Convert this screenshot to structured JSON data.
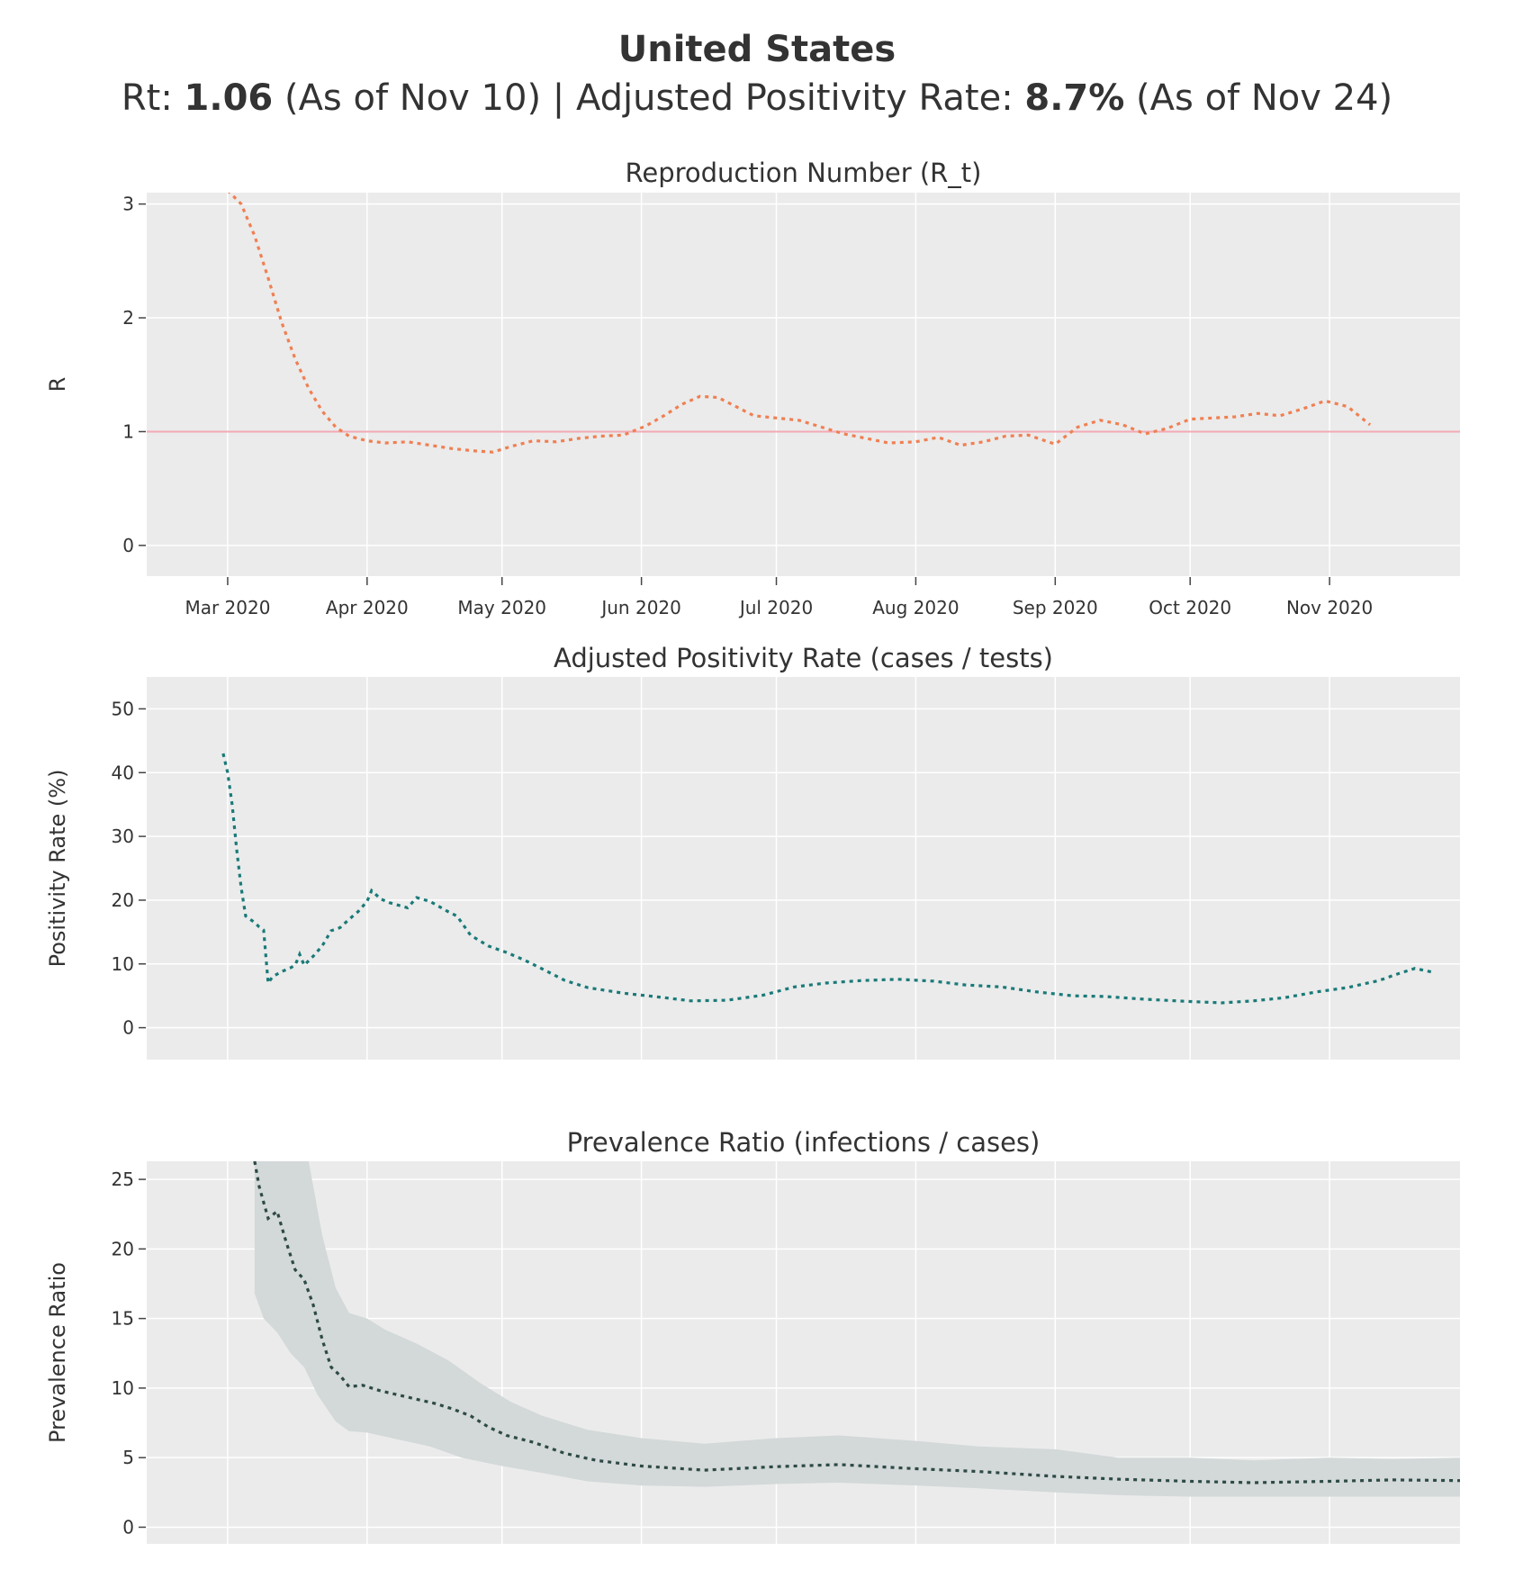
{
  "header": {
    "title": "United States",
    "rt_label": "Rt: ",
    "rt_value": "1.06",
    "rt_asof": " (As of Nov 10) | Adjusted Positivity Rate: ",
    "pos_value": "8.7%",
    "pos_asof": " (As of Nov 24)"
  },
  "colors": {
    "plot_bg": "#ebebeb",
    "grid": "#ffffff",
    "rt_line": "#f07f52",
    "rt_reference": "#f2a9b5",
    "positivity_line": "#1a7a78",
    "prevalence_line": "#2d4a44",
    "prevalence_band": "#d3d8d9"
  },
  "chart_data": [
    {
      "type": "line",
      "title": "Reproduction Number (R_t)",
      "xlabel": "",
      "ylabel": "R",
      "x_tick_labels": [
        "Mar 2020",
        "Apr 2020",
        "May 2020",
        "Jun 2020",
        "Jul 2020",
        "Aug 2020",
        "Sep 2020",
        "Oct 2020",
        "Nov 2020"
      ],
      "y_ticks": [
        0,
        1,
        2,
        3
      ],
      "ylim": [
        -0.27,
        3.1
      ],
      "xlim": [
        "2020-02-12",
        "2020-11-30"
      ],
      "reference_line": 1,
      "grid": true,
      "series": [
        {
          "x": [
            "2020-03-01",
            "2020-03-04",
            "2020-03-07",
            "2020-03-10",
            "2020-03-13",
            "2020-03-16",
            "2020-03-19",
            "2020-03-22",
            "2020-03-25",
            "2020-03-28",
            "2020-04-01",
            "2020-04-05",
            "2020-04-10",
            "2020-04-15",
            "2020-04-20",
            "2020-04-25",
            "2020-04-29",
            "2020-05-03",
            "2020-05-08",
            "2020-05-13",
            "2020-05-18",
            "2020-05-23",
            "2020-05-28",
            "2020-06-02",
            "2020-06-06",
            "2020-06-10",
            "2020-06-14",
            "2020-06-18",
            "2020-06-22",
            "2020-06-26",
            "2020-07-01",
            "2020-07-06",
            "2020-07-11",
            "2020-07-16",
            "2020-07-21",
            "2020-07-26",
            "2020-08-01",
            "2020-08-06",
            "2020-08-11",
            "2020-08-16",
            "2020-08-21",
            "2020-08-26",
            "2020-09-01",
            "2020-09-06",
            "2020-09-11",
            "2020-09-16",
            "2020-09-21",
            "2020-09-26",
            "2020-10-01",
            "2020-10-06",
            "2020-10-11",
            "2020-10-16",
            "2020-10-21",
            "2020-10-26",
            "2020-10-31",
            "2020-11-05",
            "2020-11-10"
          ],
          "y": [
            3.12,
            3.0,
            2.72,
            2.35,
            1.96,
            1.64,
            1.38,
            1.18,
            1.04,
            0.96,
            0.92,
            0.9,
            0.91,
            0.88,
            0.85,
            0.83,
            0.82,
            0.87,
            0.92,
            0.91,
            0.94,
            0.96,
            0.97,
            1.05,
            1.14,
            1.24,
            1.31,
            1.3,
            1.22,
            1.14,
            1.12,
            1.1,
            1.04,
            0.98,
            0.94,
            0.9,
            0.91,
            0.95,
            0.88,
            0.91,
            0.96,
            0.97,
            0.89,
            1.04,
            1.1,
            1.06,
            0.98,
            1.03,
            1.11,
            1.12,
            1.13,
            1.16,
            1.14,
            1.2,
            1.27,
            1.22,
            1.06
          ]
        }
      ]
    },
    {
      "type": "line",
      "title": "Adjusted Positivity Rate (cases / tests)",
      "xlabel": "",
      "ylabel": "Positivity Rate (%)",
      "y_ticks": [
        0,
        10,
        20,
        30,
        40,
        50
      ],
      "ylim": [
        -5,
        55
      ],
      "xlim": [
        "2020-02-12",
        "2020-11-30"
      ],
      "grid": true,
      "series": [
        {
          "x": [
            "2020-02-29",
            "2020-03-01",
            "2020-03-02",
            "2020-03-03",
            "2020-03-04",
            "2020-03-05",
            "2020-03-06",
            "2020-03-07",
            "2020-03-08",
            "2020-03-09",
            "2020-03-10",
            "2020-03-11",
            "2020-03-13",
            "2020-03-15",
            "2020-03-16",
            "2020-03-17",
            "2020-03-18",
            "2020-03-20",
            "2020-03-22",
            "2020-03-24",
            "2020-03-26",
            "2020-03-28",
            "2020-03-30",
            "2020-04-01",
            "2020-04-02",
            "2020-04-04",
            "2020-04-06",
            "2020-04-08",
            "2020-04-10",
            "2020-04-12",
            "2020-04-15",
            "2020-04-19",
            "2020-04-21",
            "2020-04-24",
            "2020-04-28",
            "2020-05-02",
            "2020-05-06",
            "2020-05-10",
            "2020-05-15",
            "2020-05-20",
            "2020-05-28",
            "2020-06-05",
            "2020-06-12",
            "2020-06-20",
            "2020-06-28",
            "2020-07-05",
            "2020-07-12",
            "2020-07-20",
            "2020-07-28",
            "2020-08-05",
            "2020-08-12",
            "2020-08-20",
            "2020-08-28",
            "2020-09-05",
            "2020-09-12",
            "2020-09-20",
            "2020-09-28",
            "2020-10-01",
            "2020-10-08",
            "2020-10-15",
            "2020-10-22",
            "2020-10-29",
            "2020-11-05",
            "2020-11-12",
            "2020-11-16",
            "2020-11-20",
            "2020-11-24"
          ],
          "y": [
            43,
            40,
            35,
            28,
            22,
            17.5,
            17,
            16.5,
            15.8,
            15.3,
            7,
            8,
            8.8,
            9.4,
            9.8,
            11.5,
            9.8,
            11.2,
            12.8,
            15.2,
            15.7,
            17,
            18.2,
            19.8,
            21.5,
            20.2,
            19.6,
            19.2,
            18.8,
            20.4,
            19.8,
            18.2,
            17.5,
            14.5,
            12.8,
            11.8,
            10.6,
            9.2,
            7.4,
            6.3,
            5.4,
            4.8,
            4.2,
            4.3,
            5.1,
            6.4,
            7.0,
            7.4,
            7.6,
            7.3,
            6.7,
            6.4,
            5.6,
            5.0,
            4.9,
            4.5,
            4.2,
            4.1,
            3.9,
            4.2,
            4.7,
            5.6,
            6.3,
            7.4,
            8.4,
            9.3,
            8.7
          ]
        }
      ]
    },
    {
      "type": "area",
      "title": "Prevalence Ratio (infections / cases)",
      "xlabel": "",
      "ylabel": "Prevalence Ratio",
      "y_ticks": [
        0,
        5,
        10,
        15,
        20,
        25
      ],
      "ylim": [
        -1.2,
        26.3
      ],
      "xlim": [
        "2020-02-12",
        "2020-11-30"
      ],
      "grid": true,
      "series": [
        {
          "name": "estimate",
          "x": [
            "2020-03-07",
            "2020-03-08",
            "2020-03-10",
            "2020-03-12",
            "2020-03-14",
            "2020-03-16",
            "2020-03-18",
            "2020-03-20",
            "2020-03-22",
            "2020-03-24",
            "2020-03-26",
            "2020-03-28",
            "2020-03-31",
            "2020-04-04",
            "2020-04-08",
            "2020-04-12",
            "2020-04-16",
            "2020-04-20",
            "2020-04-24",
            "2020-04-28",
            "2020-05-02",
            "2020-05-08",
            "2020-05-15",
            "2020-05-22",
            "2020-06-01",
            "2020-06-15",
            "2020-07-01",
            "2020-07-15",
            "2020-08-01",
            "2020-08-15",
            "2020-09-01",
            "2020-09-15",
            "2020-10-01",
            "2020-10-15",
            "2020-11-01",
            "2020-11-15",
            "2020-11-30"
          ],
          "y": [
            26.3,
            24.5,
            22.2,
            22.7,
            20.5,
            18.5,
            17.8,
            16.0,
            13.5,
            11.5,
            10.9,
            10.1,
            10.2,
            9.8,
            9.5,
            9.2,
            8.9,
            8.5,
            8.0,
            7.2,
            6.6,
            6.1,
            5.3,
            4.8,
            4.4,
            4.1,
            4.35,
            4.5,
            4.2,
            4.0,
            3.65,
            3.45,
            3.3,
            3.2,
            3.3,
            3.4,
            3.35
          ]
        },
        {
          "name": "upper",
          "x": [
            "2020-03-07",
            "2020-03-13",
            "2020-03-15",
            "2020-03-17",
            "2020-03-19",
            "2020-03-22",
            "2020-03-25",
            "2020-03-28",
            "2020-04-01",
            "2020-04-05",
            "2020-04-12",
            "2020-04-19",
            "2020-04-26",
            "2020-05-03",
            "2020-05-10",
            "2020-05-20",
            "2020-06-01",
            "2020-06-15",
            "2020-07-01",
            "2020-07-15",
            "2020-08-01",
            "2020-08-15",
            "2020-09-01",
            "2020-09-15",
            "2020-10-01",
            "2020-10-15",
            "2020-11-01",
            "2020-11-15",
            "2020-11-30"
          ],
          "y": [
            26.3,
            26.3,
            26.3,
            26.3,
            26.3,
            21,
            17.2,
            15.4,
            15.0,
            14.2,
            13.2,
            12.0,
            10.4,
            9.0,
            8.0,
            7.0,
            6.4,
            6.0,
            6.4,
            6.6,
            6.2,
            5.8,
            5.6,
            5.0,
            5.0,
            4.8,
            5.0,
            4.9,
            5.0
          ]
        },
        {
          "name": "lower",
          "x": [
            "2020-03-07",
            "2020-03-09",
            "2020-03-12",
            "2020-03-15",
            "2020-03-18",
            "2020-03-21",
            "2020-03-25",
            "2020-03-28",
            "2020-04-01",
            "2020-04-08",
            "2020-04-15",
            "2020-04-22",
            "2020-05-01",
            "2020-05-10",
            "2020-05-20",
            "2020-06-01",
            "2020-06-15",
            "2020-07-01",
            "2020-07-15",
            "2020-08-01",
            "2020-08-15",
            "2020-09-01",
            "2020-09-15",
            "2020-10-01",
            "2020-10-15",
            "2020-11-01",
            "2020-11-15",
            "2020-11-30"
          ],
          "y": [
            16.8,
            15.0,
            14.0,
            12.5,
            11.5,
            9.5,
            7.6,
            6.9,
            6.8,
            6.3,
            5.8,
            5.0,
            4.4,
            3.9,
            3.3,
            3.0,
            2.9,
            3.1,
            3.2,
            3.0,
            2.8,
            2.5,
            2.3,
            2.2,
            2.2,
            2.2,
            2.2,
            2.2
          ]
        }
      ]
    }
  ]
}
